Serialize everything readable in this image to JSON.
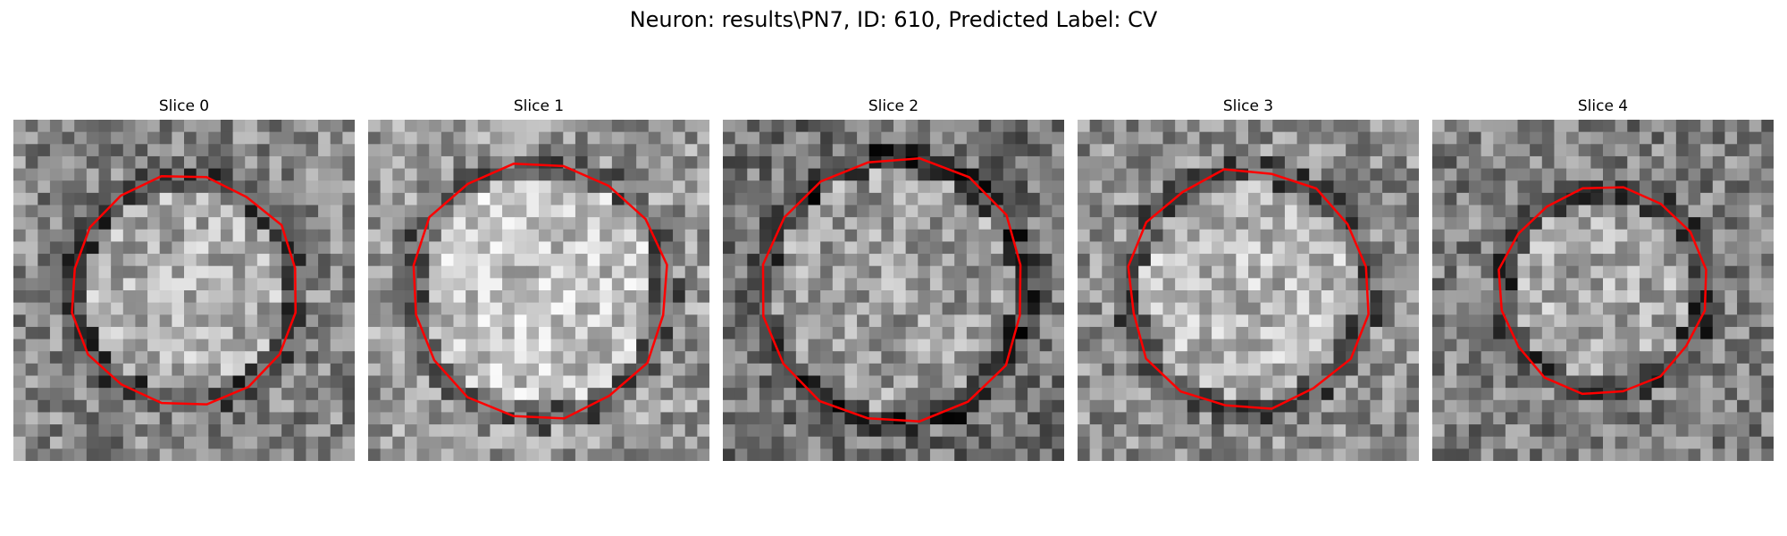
{
  "figure": {
    "title": "Neuron: results\\PN7, ID: 610, Predicted Label: CV"
  },
  "outline_color": "#ff0000",
  "panels": [
    {
      "title": "Slice 0",
      "icon": "grayscale-microscopy-image",
      "brightness": 0.52,
      "outline_scale": 0.93
    },
    {
      "title": "Slice 1",
      "icon": "grayscale-microscopy-image",
      "brightness": 0.6,
      "outline_scale": 1.05
    },
    {
      "title": "Slice 2",
      "icon": "grayscale-microscopy-image",
      "brightness": 0.45,
      "outline_scale": 1.08
    },
    {
      "title": "Slice 3",
      "icon": "grayscale-microscopy-image",
      "brightness": 0.56,
      "outline_scale": 0.98
    },
    {
      "title": "Slice 4",
      "icon": "grayscale-microscopy-image",
      "brightness": 0.5,
      "outline_scale": 0.84
    }
  ]
}
